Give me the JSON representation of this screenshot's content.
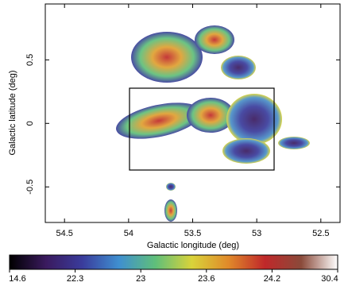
{
  "chart_data": {
    "type": "image",
    "xlabel": "Galactic longitude (deg)",
    "ylabel": "Galactic latitude (deg)",
    "xlim": [
      54.65,
      52.35
    ],
    "ylim": [
      -0.78,
      0.94
    ],
    "xticks": [
      54.5,
      54.0,
      53.5,
      53.0,
      52.5
    ],
    "yticks": [
      0.5,
      0.0,
      -0.5
    ],
    "colorbar": {
      "ticks": [
        14.6,
        22.3,
        23,
        23.6,
        24.2,
        30.4
      ],
      "colors": [
        "#000000",
        "#3a1a5e",
        "#3a3c9c",
        "#3f8fd0",
        "#5fbf7a",
        "#d9d33a",
        "#e08a2a",
        "#c0282a",
        "#8a4a3a",
        "#ffffff"
      ]
    }
  }
}
